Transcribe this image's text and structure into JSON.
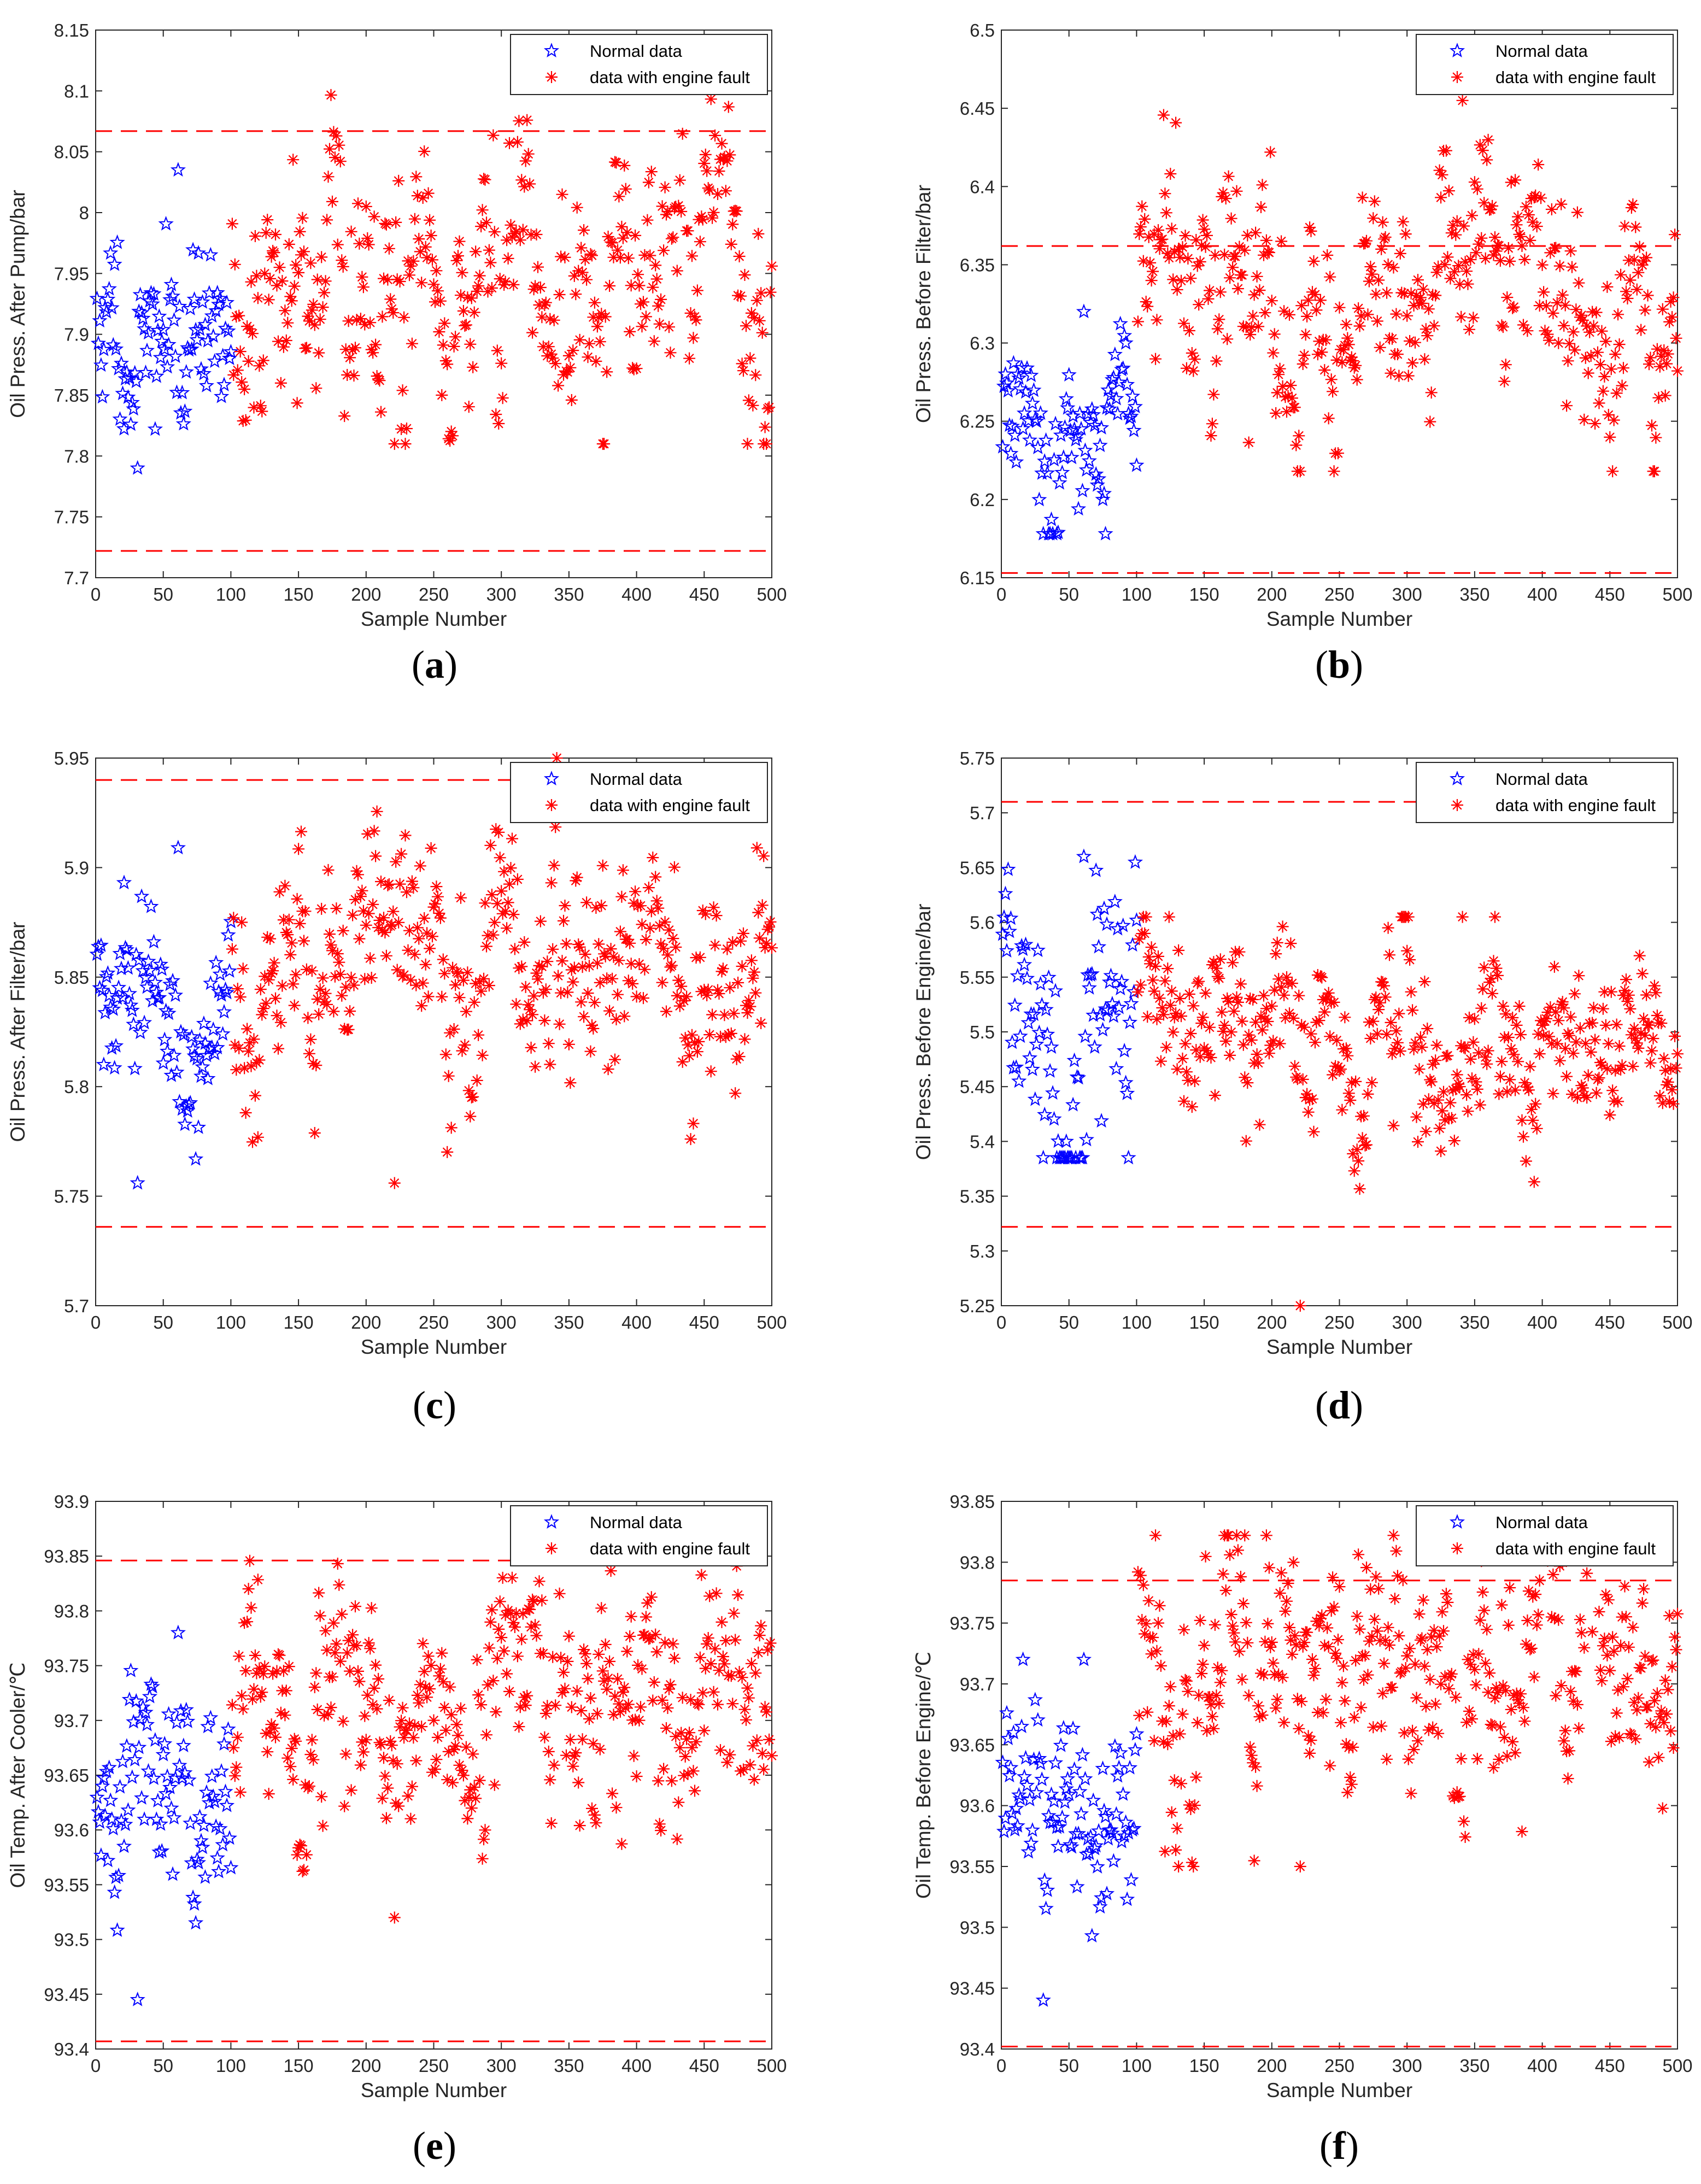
{
  "figure": {
    "legend": {
      "normal": "Normal data",
      "fault": "data with engine fault"
    },
    "colors": {
      "normal": "#0000ff",
      "fault": "#ff0000",
      "threshold": "#ff0000",
      "axis": "#262626"
    }
  },
  "chart_data": [
    {
      "id": "a",
      "type": "scatter",
      "caption_letter": "a",
      "xlabel": "Sample Number",
      "ylabel": "Oil Press. After Pump/bar",
      "xlim": [
        0,
        500
      ],
      "ylim": [
        7.7,
        8.15
      ],
      "xticks": [
        0,
        50,
        100,
        150,
        200,
        250,
        300,
        350,
        400,
        450,
        500
      ],
      "yticks": [
        7.7,
        7.75,
        7.8,
        7.85,
        7.9,
        7.95,
        8.0,
        8.05,
        8.1,
        8.15
      ],
      "ytick_labels": [
        "7.7",
        "7.75",
        "7.8",
        "7.85",
        "7.9",
        "7.95",
        "8",
        "8.05",
        "8.1",
        "8.15"
      ],
      "thresholds": [
        8.067,
        7.722
      ],
      "legend_position": "top-right",
      "series": [
        {
          "name": "Normal data",
          "marker": "star",
          "x_range": [
            1,
            100
          ],
          "mean": 7.9,
          "spread": 0.045,
          "min": 7.79,
          "max": 8.035,
          "seed": 11
        },
        {
          "name": "data with engine fault",
          "marker": "asterisk",
          "x_range": [
            101,
            500
          ],
          "mean": 7.95,
          "spread": 0.06,
          "min": 7.81,
          "max": 8.122,
          "seed": 12
        }
      ]
    },
    {
      "id": "b",
      "type": "scatter",
      "caption_letter": "b",
      "xlabel": "Sample Number",
      "ylabel": "Oil Press. Before Filter/bar",
      "xlim": [
        0,
        500
      ],
      "ylim": [
        6.15,
        6.5
      ],
      "xticks": [
        0,
        50,
        100,
        150,
        200,
        250,
        300,
        350,
        400,
        450,
        500
      ],
      "yticks": [
        6.15,
        6.2,
        6.25,
        6.3,
        6.35,
        6.4,
        6.45,
        6.5
      ],
      "ytick_labels": [
        "6.15",
        "6.2",
        "6.25",
        "6.3",
        "6.35",
        "6.4",
        "6.45",
        "6.5"
      ],
      "thresholds": [
        6.362,
        6.153
      ],
      "legend_position": "top-right",
      "series": [
        {
          "name": "Normal data",
          "marker": "star",
          "x_range": [
            1,
            100
          ],
          "mean": 6.255,
          "spread": 0.03,
          "min": 6.178,
          "max": 6.32,
          "seed": 21
        },
        {
          "name": "data with engine fault",
          "marker": "asterisk",
          "x_range": [
            101,
            500
          ],
          "mean": 6.33,
          "spread": 0.04,
          "min": 6.218,
          "max": 6.455,
          "seed": 22
        }
      ]
    },
    {
      "id": "c",
      "type": "scatter",
      "caption_letter": "c",
      "xlabel": "Sample Number",
      "ylabel": "Oil Press. After Filter/bar",
      "xlim": [
        0,
        500
      ],
      "ylim": [
        5.7,
        5.95
      ],
      "xticks": [
        0,
        50,
        100,
        150,
        200,
        250,
        300,
        350,
        400,
        450,
        500
      ],
      "yticks": [
        5.7,
        5.75,
        5.8,
        5.85,
        5.9,
        5.95
      ],
      "ytick_labels": [
        "5.7",
        "5.75",
        "5.8",
        "5.85",
        "5.9",
        "5.95"
      ],
      "thresholds": [
        5.94,
        5.736
      ],
      "legend_position": "top-right",
      "series": [
        {
          "name": "Normal data",
          "marker": "star",
          "x_range": [
            1,
            100
          ],
          "mean": 5.83,
          "spread": 0.025,
          "min": 5.756,
          "max": 5.909,
          "seed": 31
        },
        {
          "name": "data with engine fault",
          "marker": "asterisk",
          "x_range": [
            101,
            500
          ],
          "mean": 5.845,
          "spread": 0.03,
          "min": 5.756,
          "max": 5.95,
          "seed": 32
        }
      ]
    },
    {
      "id": "d",
      "type": "scatter",
      "caption_letter": "d",
      "xlabel": "Sample Number",
      "ylabel": "Oil Press. Before Engine/bar",
      "xlim": [
        0,
        500
      ],
      "ylim": [
        5.25,
        5.75
      ],
      "xticks": [
        0,
        50,
        100,
        150,
        200,
        250,
        300,
        350,
        400,
        450,
        500
      ],
      "yticks": [
        5.25,
        5.3,
        5.35,
        5.4,
        5.45,
        5.5,
        5.55,
        5.6,
        5.65,
        5.7,
        5.75
      ],
      "ytick_labels": [
        "5.25",
        "5.3",
        "5.35",
        "5.4",
        "5.45",
        "5.5",
        "5.55",
        "5.6",
        "5.65",
        "5.7",
        "5.75"
      ],
      "thresholds": [
        5.71,
        5.322
      ],
      "legend_position": "top-right",
      "series": [
        {
          "name": "Normal data",
          "marker": "star",
          "x_range": [
            1,
            100
          ],
          "mean": 5.53,
          "spread": 0.07,
          "min": 5.385,
          "max": 5.66,
          "seed": 41
        },
        {
          "name": "data with engine fault",
          "marker": "asterisk",
          "x_range": [
            101,
            500
          ],
          "mean": 5.5,
          "spread": 0.05,
          "min": 5.25,
          "max": 5.605,
          "seed": 42
        }
      ]
    },
    {
      "id": "e",
      "type": "scatter",
      "caption_letter": "e",
      "xlabel": "Sample Number",
      "ylabel": "Oil Temp. After Cooler/℃",
      "xlim": [
        0,
        500
      ],
      "ylim": [
        93.4,
        93.9
      ],
      "xticks": [
        0,
        50,
        100,
        150,
        200,
        250,
        300,
        350,
        400,
        450,
        500
      ],
      "yticks": [
        93.4,
        93.45,
        93.5,
        93.55,
        93.6,
        93.65,
        93.7,
        93.75,
        93.8,
        93.85,
        93.9
      ],
      "ytick_labels": [
        "93.4",
        "93.45",
        "93.5",
        "93.55",
        "93.6",
        "93.65",
        "93.7",
        "93.75",
        "93.8",
        "93.85",
        "93.9"
      ],
      "thresholds": [
        93.846,
        93.407
      ],
      "legend_position": "top-right",
      "series": [
        {
          "name": "Normal data",
          "marker": "star",
          "x_range": [
            1,
            100
          ],
          "mean": 93.62,
          "spread": 0.06,
          "min": 93.445,
          "max": 93.78,
          "seed": 51
        },
        {
          "name": "data with engine fault",
          "marker": "asterisk",
          "x_range": [
            101,
            500
          ],
          "mean": 93.71,
          "spread": 0.06,
          "min": 93.52,
          "max": 93.852,
          "seed": 52
        }
      ]
    },
    {
      "id": "f",
      "type": "scatter",
      "caption_letter": "f",
      "xlabel": "Sample Number",
      "ylabel": "Oil Temp. Before Engine/℃",
      "xlim": [
        0,
        500
      ],
      "ylim": [
        93.4,
        93.85
      ],
      "xticks": [
        0,
        50,
        100,
        150,
        200,
        250,
        300,
        350,
        400,
        450,
        500
      ],
      "yticks": [
        93.4,
        93.45,
        93.5,
        93.55,
        93.6,
        93.65,
        93.7,
        93.75,
        93.8,
        93.85
      ],
      "ytick_labels": [
        "93.4",
        "93.45",
        "93.5",
        "93.55",
        "93.6",
        "93.65",
        "93.7",
        "93.75",
        "93.8",
        "93.85"
      ],
      "thresholds": [
        93.785,
        93.402
      ],
      "legend_position": "top-right",
      "series": [
        {
          "name": "Normal data",
          "marker": "star",
          "x_range": [
            1,
            100
          ],
          "mean": 93.59,
          "spread": 0.055,
          "min": 93.44,
          "max": 93.72,
          "seed": 61
        },
        {
          "name": "data with engine fault",
          "marker": "asterisk",
          "x_range": [
            101,
            500
          ],
          "mean": 93.7,
          "spread": 0.06,
          "min": 93.55,
          "max": 93.822,
          "seed": 62
        }
      ]
    }
  ]
}
